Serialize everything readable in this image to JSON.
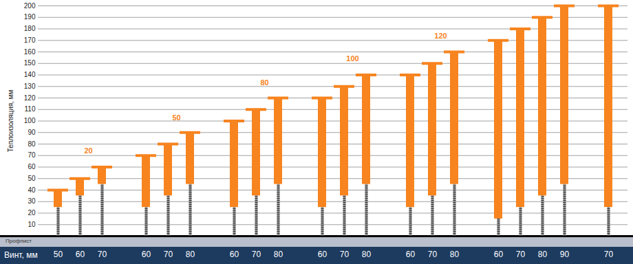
{
  "chart_data": {
    "type": "bar",
    "y_label": "Теплоизоляция, мм",
    "x_label": "Винт, мм",
    "base_label": "Профлист",
    "categories": [
      50,
      60,
      70,
      null,
      60,
      70,
      80,
      null,
      60,
      70,
      80,
      null,
      60,
      70,
      80,
      null,
      60,
      70,
      80,
      null,
      60,
      70,
      80,
      90,
      null,
      70
    ],
    "values": [
      40,
      50,
      60,
      null,
      70,
      80,
      90,
      null,
      100,
      110,
      120,
      null,
      120,
      130,
      140,
      null,
      140,
      150,
      160,
      null,
      170,
      180,
      190,
      200,
      null,
      200
    ],
    "sleeve_bottom": [
      25,
      35,
      45,
      null,
      25,
      35,
      45,
      null,
      25,
      35,
      45,
      null,
      25,
      35,
      45,
      null,
      25,
      35,
      45,
      null,
      15,
      25,
      35,
      45,
      null,
      25
    ],
    "color": "#f7841f",
    "ylim": [
      0,
      200
    ],
    "yticks": [
      10,
      20,
      30,
      40,
      50,
      60,
      70,
      80,
      90,
      100,
      110,
      120,
      130,
      140,
      150,
      160,
      170,
      180,
      190,
      200
    ],
    "grid": true,
    "annotations": [
      {
        "text": "20",
        "x": 1,
        "y": 74
      },
      {
        "text": "50",
        "x": 5,
        "y": 103
      },
      {
        "text": "80",
        "x": 9,
        "y": 133
      },
      {
        "text": "100",
        "x": 13,
        "y": 154
      },
      {
        "text": "120",
        "x": 17,
        "y": 174
      }
    ]
  }
}
